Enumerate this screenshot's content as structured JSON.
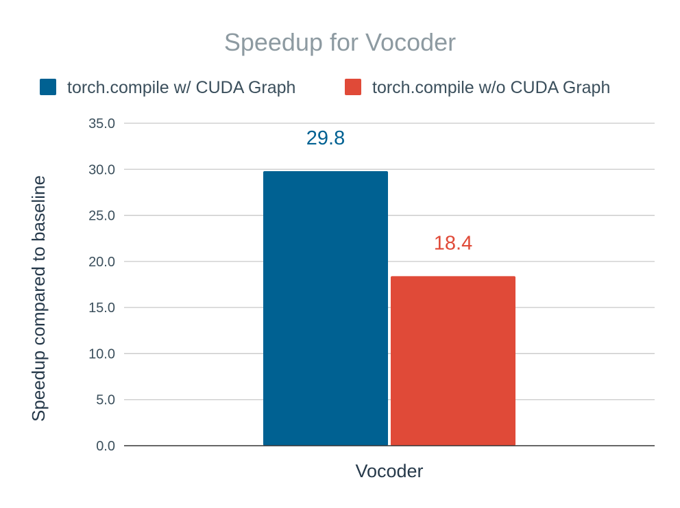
{
  "chart_data": {
    "type": "bar",
    "title": "Speedup for Vocoder",
    "xlabel": "",
    "ylabel": "Speedup compared to baseline",
    "categories": [
      "Vocoder"
    ],
    "series": [
      {
        "name": "torch.compile w/ CUDA Graph",
        "values": [
          29.8
        ],
        "color": "#006192",
        "data_labels": [
          "29.8"
        ]
      },
      {
        "name": "torch.compile w/o CUDA Graph",
        "values": [
          18.4
        ],
        "color": "#e04a38",
        "data_labels": [
          "18.4"
        ]
      }
    ],
    "ylim": [
      0,
      35
    ],
    "yticks": [
      0,
      5,
      10,
      15,
      20,
      25,
      30,
      35
    ],
    "ytick_labels": [
      "0.0",
      "5.0",
      "10.0",
      "15.0",
      "20.0",
      "25.0",
      "30.0",
      "35.0"
    ],
    "grid": true,
    "legend_position": "top"
  }
}
